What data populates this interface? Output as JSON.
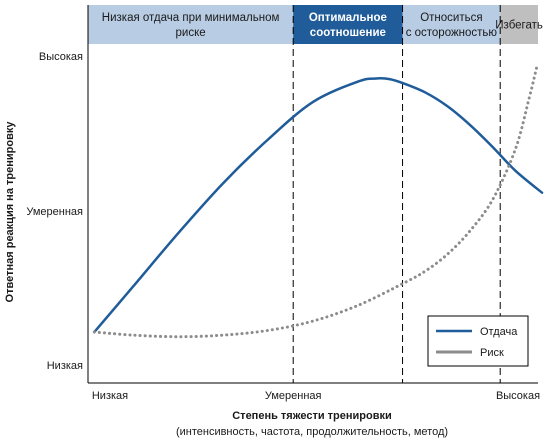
{
  "chart_data": {
    "type": "line",
    "xlabel": "Степень тяжести тренировки",
    "xlabel_sub": "(интенсивность, частота, продолжительность, метод)",
    "ylabel": "Ответная реакция на тренировку",
    "x_ticks": [
      "Низкая",
      "Умеренная",
      "Высокая"
    ],
    "y_ticks": [
      "Низкая",
      "Умеренная",
      "Высокая"
    ],
    "xlim": [
      0,
      100
    ],
    "ylim": [
      0,
      100
    ],
    "grid": false,
    "legend_position": "bottom-right",
    "zones": [
      {
        "lines": [
          "Низкая отдача при минимальном",
          "риске"
        ],
        "start": 0,
        "end": 45.6,
        "fill": "#b8cce4",
        "text_color": "#1a1a1a"
      },
      {
        "lines": [
          "Оптимальное",
          "соотношение"
        ],
        "start": 45.6,
        "end": 69.9,
        "fill": "#1f5c99",
        "text_color": "#ffffff"
      },
      {
        "lines": [
          "Относиться",
          "с осторожностью"
        ],
        "start": 69.9,
        "end": 91.6,
        "fill": "#b8cce4",
        "text_color": "#1a1a1a"
      },
      {
        "lines": [
          "Избегать"
        ],
        "start": 91.6,
        "end": 100,
        "fill": "#bfbfbf",
        "text_color": "#1a1a1a"
      }
    ],
    "series": [
      {
        "name": "Отдача",
        "style": "solid",
        "color": "#1f5c99",
        "x": [
          1.4,
          10,
          20,
          30,
          40,
          50,
          60,
          64,
          67,
          70,
          75,
          80,
          85,
          90,
          95,
          100.9
        ],
        "y": [
          11.5,
          26,
          43,
          59,
          73,
          85,
          91.5,
          92.5,
          92.3,
          91,
          88,
          83.5,
          77.5,
          70.5,
          63,
          56
        ]
      },
      {
        "name": "Риск",
        "style": "dotted",
        "color": "#8c8c8c",
        "x": [
          1.4,
          10,
          20,
          30,
          40,
          50,
          60,
          70,
          75,
          80,
          85,
          90,
          95,
          98,
          99.7
        ],
        "y": [
          11.5,
          10.5,
          10,
          10.5,
          12,
          15,
          20,
          27,
          31,
          36.5,
          44,
          54,
          70,
          86,
          96
        ]
      }
    ],
    "colors": {
      "axis": "#000000",
      "text": "#1a1a1a",
      "divider": "#000000"
    }
  }
}
